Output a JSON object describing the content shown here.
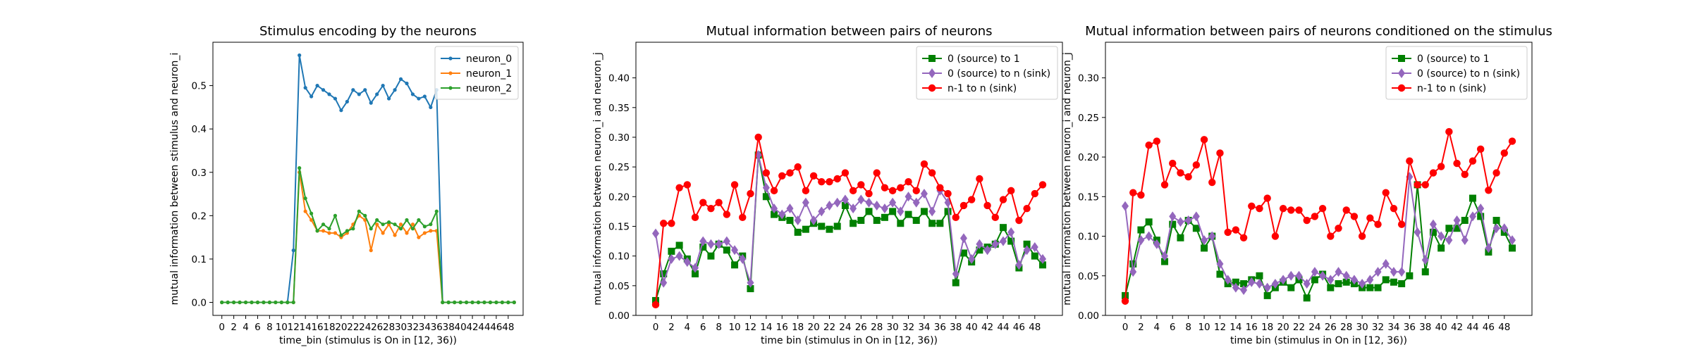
{
  "chart_data": [
    {
      "type": "line",
      "title": "Stimulus encoding by the neurons",
      "xlabel": "time_bin (stimulus is On in [12, 36))",
      "ylabel": "mutual information between stimulus and neuron_i",
      "xlim": [
        -1.5,
        50.5
      ],
      "ylim": [
        -0.03,
        0.6
      ],
      "xticks": [
        0,
        2,
        4,
        6,
        8,
        10,
        12,
        14,
        16,
        18,
        20,
        22,
        24,
        26,
        28,
        30,
        32,
        34,
        36,
        38,
        40,
        42,
        44,
        46,
        48
      ],
      "yticks": [
        0.0,
        0.1,
        0.2,
        0.3,
        0.4,
        0.5
      ],
      "ytick_labels": [
        "0.0",
        "0.1",
        "0.2",
        "0.3",
        "0.4",
        "0.5"
      ],
      "legend": "top-right",
      "series": [
        {
          "name": "neuron_0",
          "color": "#1f77b4",
          "marker": "dot",
          "x": [
            0,
            1,
            2,
            3,
            4,
            5,
            6,
            7,
            8,
            9,
            10,
            11,
            12,
            13,
            14,
            15,
            16,
            17,
            18,
            19,
            20,
            21,
            22,
            23,
            24,
            25,
            26,
            27,
            28,
            29,
            30,
            31,
            32,
            33,
            34,
            35,
            36,
            37,
            38,
            39,
            40,
            41,
            42,
            43,
            44,
            45,
            46,
            47,
            48,
            49
          ],
          "values": [
            0,
            0,
            0,
            0,
            0,
            0,
            0,
            0,
            0,
            0,
            0,
            0,
            0.12,
            0.57,
            0.495,
            0.475,
            0.5,
            0.49,
            0.48,
            0.47,
            0.443,
            0.463,
            0.49,
            0.48,
            0.49,
            0.46,
            0.48,
            0.5,
            0.47,
            0.49,
            0.515,
            0.505,
            0.48,
            0.47,
            0.475,
            0.45,
            0.49,
            0,
            0,
            0,
            0,
            0,
            0,
            0,
            0,
            0,
            0,
            0,
            0,
            0
          ]
        },
        {
          "name": "neuron_1",
          "color": "#ff7f0e",
          "marker": "dot",
          "x": [
            0,
            1,
            2,
            3,
            4,
            5,
            6,
            7,
            8,
            9,
            10,
            11,
            12,
            13,
            14,
            15,
            16,
            17,
            18,
            19,
            20,
            21,
            22,
            23,
            24,
            25,
            26,
            27,
            28,
            29,
            30,
            31,
            32,
            33,
            34,
            35,
            36,
            37,
            38,
            39,
            40,
            41,
            42,
            43,
            44,
            45,
            46,
            47,
            48,
            49
          ],
          "values": [
            0,
            0,
            0,
            0,
            0,
            0,
            0,
            0,
            0,
            0,
            0,
            0,
            0,
            0.3,
            0.21,
            0.19,
            0.165,
            0.165,
            0.16,
            0.16,
            0.15,
            0.16,
            0.18,
            0.2,
            0.19,
            0.12,
            0.18,
            0.16,
            0.18,
            0.155,
            0.18,
            0.16,
            0.18,
            0.15,
            0.16,
            0.165,
            0.165,
            0,
            0,
            0,
            0,
            0,
            0,
            0,
            0,
            0,
            0,
            0,
            0,
            0
          ]
        },
        {
          "name": "neuron_2",
          "color": "#2ca02c",
          "marker": "dot",
          "x": [
            0,
            1,
            2,
            3,
            4,
            5,
            6,
            7,
            8,
            9,
            10,
            11,
            12,
            13,
            14,
            15,
            16,
            17,
            18,
            19,
            20,
            21,
            22,
            23,
            24,
            25,
            26,
            27,
            28,
            29,
            30,
            31,
            32,
            33,
            34,
            35,
            36,
            37,
            38,
            39,
            40,
            41,
            42,
            43,
            44,
            45,
            46,
            47,
            48,
            49
          ],
          "values": [
            0,
            0,
            0,
            0,
            0,
            0,
            0,
            0,
            0,
            0,
            0,
            0,
            0,
            0.31,
            0.24,
            0.205,
            0.165,
            0.18,
            0.17,
            0.2,
            0.155,
            0.165,
            0.17,
            0.21,
            0.2,
            0.17,
            0.19,
            0.18,
            0.185,
            0.18,
            0.17,
            0.19,
            0.17,
            0.19,
            0.175,
            0.18,
            0.21,
            0,
            0,
            0,
            0,
            0,
            0,
            0,
            0,
            0,
            0,
            0,
            0,
            0
          ]
        }
      ]
    },
    {
      "type": "line",
      "title": "Mutual information between pairs of neurons",
      "xlabel": "time bin (stimulus in On in [12, 36))",
      "ylabel": "mutual information between neuron_i and neuron_j",
      "xlim": [
        -2.5,
        51.5
      ],
      "ylim": [
        0.0,
        0.46
      ],
      "xticks": [
        0,
        2,
        4,
        6,
        8,
        10,
        12,
        14,
        16,
        18,
        20,
        22,
        24,
        26,
        28,
        30,
        32,
        34,
        36,
        38,
        40,
        42,
        44,
        46,
        48
      ],
      "yticks": [
        0.0,
        0.05,
        0.1,
        0.15,
        0.2,
        0.25,
        0.3,
        0.35,
        0.4
      ],
      "ytick_labels": [
        "0.00",
        "0.05",
        "0.10",
        "0.15",
        "0.20",
        "0.25",
        "0.30",
        "0.35",
        "0.40"
      ],
      "legend": "top-right",
      "series": [
        {
          "name": "0 (source) to 1",
          "color": "#008000",
          "marker": "square",
          "x": [
            0,
            1,
            2,
            3,
            4,
            5,
            6,
            7,
            8,
            9,
            10,
            11,
            12,
            13,
            14,
            15,
            16,
            17,
            18,
            19,
            20,
            21,
            22,
            23,
            24,
            25,
            26,
            27,
            28,
            29,
            30,
            31,
            32,
            33,
            34,
            35,
            36,
            37,
            38,
            39,
            40,
            41,
            42,
            43,
            44,
            45,
            46,
            47,
            48,
            49
          ],
          "values": [
            0.025,
            0.07,
            0.108,
            0.118,
            0.095,
            0.07,
            0.115,
            0.1,
            0.12,
            0.11,
            0.085,
            0.1,
            0.045,
            0.27,
            0.2,
            0.17,
            0.165,
            0.16,
            0.14,
            0.145,
            0.155,
            0.15,
            0.145,
            0.15,
            0.185,
            0.155,
            0.16,
            0.175,
            0.16,
            0.165,
            0.175,
            0.155,
            0.17,
            0.16,
            0.175,
            0.155,
            0.155,
            0.175,
            0.055,
            0.105,
            0.09,
            0.11,
            0.115,
            0.12,
            0.148,
            0.125,
            0.08,
            0.12,
            0.1,
            0.085
          ]
        },
        {
          "name": "0 (source) to n (sink)",
          "color": "#9467bd",
          "marker": "diamond",
          "x": [
            0,
            1,
            2,
            3,
            4,
            5,
            6,
            7,
            8,
            9,
            10,
            11,
            12,
            13,
            14,
            15,
            16,
            17,
            18,
            19,
            20,
            21,
            22,
            23,
            24,
            25,
            26,
            27,
            28,
            29,
            30,
            31,
            32,
            33,
            34,
            35,
            36,
            37,
            38,
            39,
            40,
            41,
            42,
            43,
            44,
            45,
            46,
            47,
            48,
            49
          ],
          "values": [
            0.138,
            0.055,
            0.095,
            0.1,
            0.09,
            0.08,
            0.125,
            0.12,
            0.12,
            0.125,
            0.11,
            0.095,
            0.055,
            0.27,
            0.215,
            0.18,
            0.17,
            0.18,
            0.16,
            0.19,
            0.16,
            0.175,
            0.185,
            0.19,
            0.195,
            0.18,
            0.195,
            0.19,
            0.185,
            0.18,
            0.19,
            0.175,
            0.2,
            0.19,
            0.205,
            0.175,
            0.21,
            0.19,
            0.07,
            0.13,
            0.095,
            0.12,
            0.11,
            0.12,
            0.125,
            0.14,
            0.085,
            0.11,
            0.115,
            0.095
          ]
        },
        {
          "name": "n-1 to n (sink)",
          "color": "#ff0000",
          "marker": "circle",
          "x": [
            0,
            1,
            2,
            3,
            4,
            5,
            6,
            7,
            8,
            9,
            10,
            11,
            12,
            13,
            14,
            15,
            16,
            17,
            18,
            19,
            20,
            21,
            22,
            23,
            24,
            25,
            26,
            27,
            28,
            29,
            30,
            31,
            32,
            33,
            34,
            35,
            36,
            37,
            38,
            39,
            40,
            41,
            42,
            43,
            44,
            45,
            46,
            47,
            48,
            49
          ],
          "values": [
            0.018,
            0.155,
            0.155,
            0.215,
            0.22,
            0.165,
            0.19,
            0.18,
            0.19,
            0.17,
            0.22,
            0.165,
            0.205,
            0.3,
            0.24,
            0.21,
            0.235,
            0.24,
            0.25,
            0.21,
            0.235,
            0.225,
            0.225,
            0.23,
            0.24,
            0.21,
            0.22,
            0.205,
            0.24,
            0.215,
            0.21,
            0.215,
            0.225,
            0.21,
            0.255,
            0.24,
            0.215,
            0.205,
            0.165,
            0.185,
            0.195,
            0.23,
            0.185,
            0.165,
            0.195,
            0.21,
            0.16,
            0.18,
            0.205,
            0.22
          ]
        }
      ]
    },
    {
      "type": "line",
      "title": "Mutual information between pairs of neurons conditioned on the stimulus",
      "xlabel": "time bin (stimulus in On in [12, 36))",
      "ylabel": "mutual information between neuron_i and neuron_j",
      "xlim": [
        -2.5,
        51.5
      ],
      "ylim": [
        0.0,
        0.345
      ],
      "xticks": [
        0,
        2,
        4,
        6,
        8,
        10,
        12,
        14,
        16,
        18,
        20,
        22,
        24,
        26,
        28,
        30,
        32,
        34,
        36,
        38,
        40,
        42,
        44,
        46,
        48
      ],
      "yticks": [
        0.0,
        0.05,
        0.1,
        0.15,
        0.2,
        0.25,
        0.3
      ],
      "ytick_labels": [
        "0.00",
        "0.05",
        "0.10",
        "0.15",
        "0.20",
        "0.25",
        "0.30"
      ],
      "legend": "top-right",
      "series": [
        {
          "name": "0 (source) to 1",
          "color": "#008000",
          "marker": "square",
          "x": [
            0,
            1,
            2,
            3,
            4,
            5,
            6,
            7,
            8,
            9,
            10,
            11,
            12,
            13,
            14,
            15,
            16,
            17,
            18,
            19,
            20,
            21,
            22,
            23,
            24,
            25,
            26,
            27,
            28,
            29,
            30,
            31,
            32,
            33,
            34,
            35,
            36,
            37,
            38,
            39,
            40,
            41,
            42,
            43,
            44,
            45,
            46,
            47,
            48,
            49
          ],
          "values": [
            0.025,
            0.065,
            0.108,
            0.118,
            0.095,
            0.068,
            0.115,
            0.098,
            0.12,
            0.11,
            0.085,
            0.1,
            0.052,
            0.04,
            0.042,
            0.04,
            0.045,
            0.05,
            0.025,
            0.035,
            0.042,
            0.035,
            0.045,
            0.022,
            0.045,
            0.052,
            0.035,
            0.04,
            0.042,
            0.04,
            0.035,
            0.035,
            0.035,
            0.045,
            0.042,
            0.04,
            0.05,
            0.165,
            0.055,
            0.105,
            0.085,
            0.11,
            0.11,
            0.12,
            0.148,
            0.125,
            0.08,
            0.12,
            0.105,
            0.085
          ]
        },
        {
          "name": "0 (source) to n (sink)",
          "color": "#9467bd",
          "marker": "diamond",
          "x": [
            0,
            1,
            2,
            3,
            4,
            5,
            6,
            7,
            8,
            9,
            10,
            11,
            12,
            13,
            14,
            15,
            16,
            17,
            18,
            19,
            20,
            21,
            22,
            23,
            24,
            25,
            26,
            27,
            28,
            29,
            30,
            31,
            32,
            33,
            34,
            35,
            36,
            37,
            38,
            39,
            40,
            41,
            42,
            43,
            44,
            45,
            46,
            47,
            48,
            49
          ],
          "values": [
            0.138,
            0.055,
            0.095,
            0.1,
            0.09,
            0.075,
            0.125,
            0.118,
            0.12,
            0.125,
            0.095,
            0.1,
            0.065,
            0.045,
            0.035,
            0.032,
            0.042,
            0.04,
            0.035,
            0.04,
            0.045,
            0.05,
            0.05,
            0.04,
            0.055,
            0.05,
            0.045,
            0.055,
            0.05,
            0.045,
            0.04,
            0.045,
            0.055,
            0.065,
            0.055,
            0.055,
            0.175,
            0.105,
            0.07,
            0.115,
            0.1,
            0.095,
            0.12,
            0.095,
            0.125,
            0.135,
            0.085,
            0.11,
            0.11,
            0.095
          ]
        },
        {
          "name": "n-1 to n (sink)",
          "color": "#ff0000",
          "marker": "circle",
          "x": [
            0,
            1,
            2,
            3,
            4,
            5,
            6,
            7,
            8,
            9,
            10,
            11,
            12,
            13,
            14,
            15,
            16,
            17,
            18,
            19,
            20,
            21,
            22,
            23,
            24,
            25,
            26,
            27,
            28,
            29,
            30,
            31,
            32,
            33,
            34,
            35,
            36,
            37,
            38,
            39,
            40,
            41,
            42,
            43,
            44,
            45,
            46,
            47,
            48,
            49
          ],
          "values": [
            0.018,
            0.155,
            0.152,
            0.215,
            0.22,
            0.165,
            0.192,
            0.18,
            0.175,
            0.19,
            0.222,
            0.168,
            0.205,
            0.105,
            0.108,
            0.098,
            0.138,
            0.135,
            0.148,
            0.1,
            0.135,
            0.133,
            0.133,
            0.12,
            0.125,
            0.135,
            0.1,
            0.11,
            0.133,
            0.125,
            0.1,
            0.123,
            0.115,
            0.155,
            0.135,
            0.115,
            0.195,
            0.165,
            0.165,
            0.18,
            0.188,
            0.232,
            0.192,
            0.178,
            0.195,
            0.21,
            0.158,
            0.18,
            0.205,
            0.22
          ]
        }
      ]
    }
  ]
}
